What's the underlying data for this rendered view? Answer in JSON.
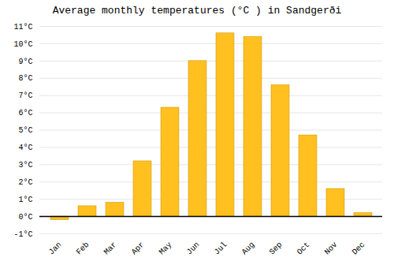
{
  "chart_data": {
    "type": "bar",
    "title": "Average monthly temperatures (°C ) in Sandgerði",
    "categories": [
      "Jan",
      "Feb",
      "Mar",
      "Apr",
      "May",
      "Jun",
      "Jul",
      "Aug",
      "Sep",
      "Oct",
      "Nov",
      "Dec"
    ],
    "values": [
      -0.2,
      0.6,
      0.8,
      3.2,
      6.3,
      9.0,
      10.6,
      10.4,
      7.6,
      4.7,
      1.6,
      0.2
    ],
    "color": "#FFC020",
    "ylim": [
      -1,
      11
    ],
    "yticks": [
      {
        "value": -1,
        "label": "-1°C"
      },
      {
        "value": 0,
        "label": "0°C"
      },
      {
        "value": 1,
        "label": "1°C"
      },
      {
        "value": 2,
        "label": "2°C"
      },
      {
        "value": 3,
        "label": "3°C"
      },
      {
        "value": 4,
        "label": "4°C"
      },
      {
        "value": 5,
        "label": "5°C"
      },
      {
        "value": 6,
        "label": "6°C"
      },
      {
        "value": 7,
        "label": "7°C"
      },
      {
        "value": 8,
        "label": "8°C"
      },
      {
        "value": 9,
        "label": "9°C"
      },
      {
        "value": 10,
        "label": "10°C"
      },
      {
        "value": 11,
        "label": "11°C"
      }
    ],
    "grid": true
  }
}
